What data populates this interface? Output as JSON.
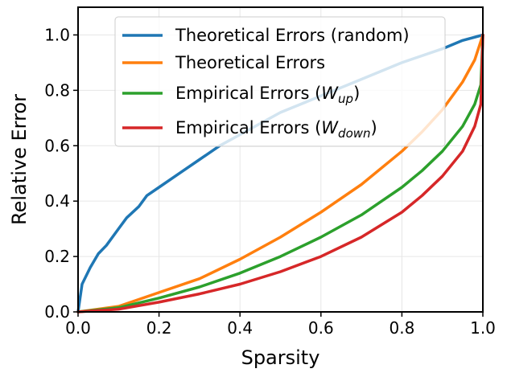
{
  "chart_data": {
    "type": "line",
    "xlabel": "Sparsity",
    "ylabel": "Relative Error",
    "xlim": [
      0.0,
      1.0
    ],
    "ylim": [
      0.0,
      1.1
    ],
    "xticks": [
      0.0,
      0.2,
      0.4,
      0.6,
      0.8,
      1.0
    ],
    "yticks": [
      0.0,
      0.2,
      0.4,
      0.6,
      0.8,
      1.0
    ],
    "xtick_labels": [
      "0.0",
      "0.2",
      "0.4",
      "0.6",
      "0.8",
      "1.0"
    ],
    "ytick_labels": [
      "0.0",
      "0.2",
      "0.4",
      "0.6",
      "0.8",
      "1.0"
    ],
    "grid": true,
    "legend_position": "top",
    "series": [
      {
        "name": "Theoretical Errors (random)",
        "legend_base": "Theoretical Errors (random)",
        "color": "#1f77b4",
        "x": [
          0.0,
          0.01,
          0.03,
          0.05,
          0.07,
          0.1,
          0.12,
          0.15,
          0.17,
          0.2,
          0.25,
          0.3,
          0.35,
          0.4,
          0.5,
          0.6,
          0.7,
          0.8,
          0.9,
          0.95,
          1.0
        ],
        "y": [
          0.0,
          0.1,
          0.16,
          0.21,
          0.24,
          0.3,
          0.34,
          0.38,
          0.42,
          0.45,
          0.5,
          0.55,
          0.6,
          0.64,
          0.72,
          0.78,
          0.84,
          0.9,
          0.95,
          0.98,
          1.0
        ]
      },
      {
        "name": "Theoretical Errors",
        "legend_base": "Theoretical Errors",
        "color": "#ff7f0e",
        "x": [
          0.0,
          0.1,
          0.2,
          0.3,
          0.4,
          0.5,
          0.6,
          0.7,
          0.8,
          0.85,
          0.9,
          0.95,
          0.98,
          1.0
        ],
        "y": [
          0.0,
          0.02,
          0.07,
          0.12,
          0.19,
          0.27,
          0.36,
          0.46,
          0.58,
          0.65,
          0.73,
          0.83,
          0.91,
          1.0
        ]
      },
      {
        "name": "Empirical Errors (W_up)",
        "legend_base": "Empirical Errors (",
        "legend_symbol": "W",
        "legend_subscript": "up",
        "legend_close": ")",
        "color": "#2ca02c",
        "x": [
          0.0,
          0.1,
          0.2,
          0.3,
          0.4,
          0.5,
          0.6,
          0.7,
          0.8,
          0.85,
          0.9,
          0.95,
          0.98,
          0.995,
          1.0
        ],
        "y": [
          0.0,
          0.015,
          0.05,
          0.09,
          0.14,
          0.2,
          0.27,
          0.35,
          0.45,
          0.51,
          0.58,
          0.67,
          0.75,
          0.82,
          1.0
        ]
      },
      {
        "name": "Empirical Errors (W_down)",
        "legend_base": "Empirical Errors (",
        "legend_symbol": "W",
        "legend_subscript": "down",
        "legend_close": ")",
        "color": "#d62728",
        "x": [
          0.0,
          0.1,
          0.2,
          0.3,
          0.4,
          0.5,
          0.6,
          0.7,
          0.8,
          0.85,
          0.9,
          0.95,
          0.98,
          0.995,
          1.0
        ],
        "y": [
          0.0,
          0.01,
          0.035,
          0.065,
          0.1,
          0.145,
          0.2,
          0.27,
          0.36,
          0.42,
          0.49,
          0.58,
          0.67,
          0.75,
          1.0
        ]
      }
    ]
  }
}
